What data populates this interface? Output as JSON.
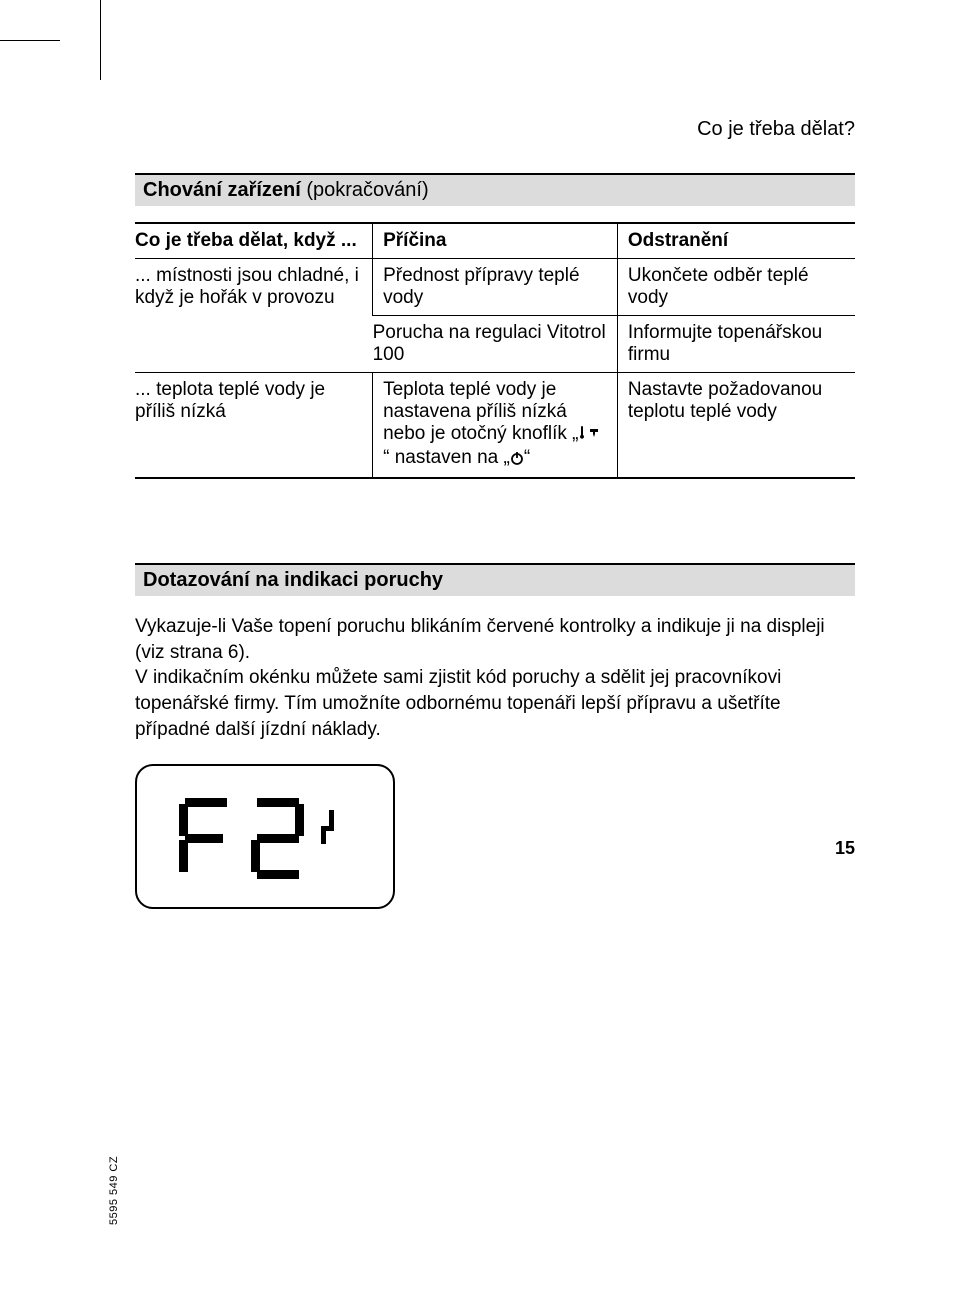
{
  "running_head": "Co je třeba dělat?",
  "section1": {
    "title_bold": "Chování zařízení",
    "title_rest": " (pokračování)"
  },
  "table": {
    "headers": [
      "Co je třeba dělat, když ...",
      "Příčina",
      "Odstranění"
    ],
    "rows": [
      {
        "c1": "... místnosti jsou chladné, i když je hořák v provozu",
        "c2": "Přednost přípravy teplé vody",
        "c3": "Ukončete odběr teplé vody"
      },
      {
        "c1": "",
        "c2": "Porucha na regulaci Vi­totrol 100",
        "c3": "Informujte topenářskou firmu"
      },
      {
        "c1": "... teplota teplé vody je příliš nízká",
        "c2_pre": "Teplota teplé vody je nastavena příliš nízká nebo je otočný knoflík „",
        "c2_mid": "“ nastaven na „",
        "c2_post": "“",
        "c3": "Nastavte požadovanou teplotu teplé vody"
      }
    ]
  },
  "section2": {
    "title": "Dotazování na indikaci poruchy"
  },
  "body": "Vykazuje-li Vaše topení  poruchu blikáním červené kontrolky a indikuje ji na dis­pleji (viz strana 6).\nV indikačním okénku můžete sami zjistit kód poruchy a sdělit jej pracovníkovi topenářské firmy. Tím umožníte odbornému topenáři lepší přípravu a ušetříte případné další jízdní náklady.",
  "display_code": "F2",
  "doc_code": "5595 549 CZ",
  "page_number": "15",
  "colors": {
    "section_bg": "#dcdcdc",
    "border": "#000000",
    "text": "#000000",
    "bg": "#ffffff"
  }
}
